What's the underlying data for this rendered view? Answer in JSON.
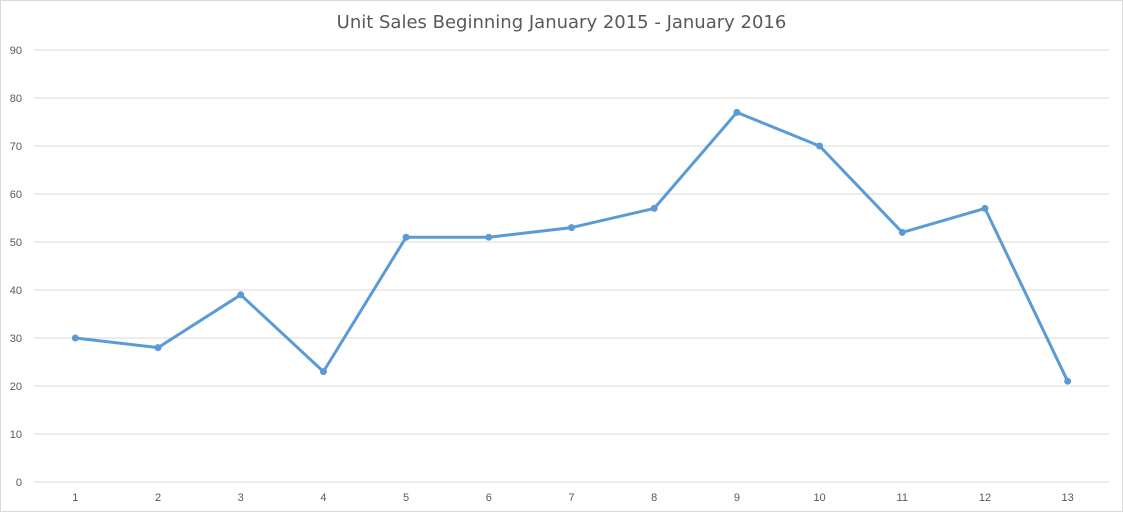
{
  "chart_data": {
    "type": "line",
    "title": "Unit Sales Beginning January 2015 - January 2016",
    "xlabel": "",
    "ylabel": "",
    "categories": [
      "1",
      "2",
      "3",
      "4",
      "5",
      "6",
      "7",
      "8",
      "9",
      "10",
      "11",
      "12",
      "13"
    ],
    "series": [
      {
        "values": [
          30,
          28,
          39,
          23,
          51,
          51,
          53,
          57,
          77,
          70,
          52,
          57,
          21
        ],
        "color": "#5b9bd5"
      }
    ],
    "ylim": [
      0,
      90
    ],
    "yticks": [
      0,
      10,
      20,
      30,
      40,
      50,
      60,
      70,
      80,
      90
    ],
    "grid": true,
    "legend": "none"
  }
}
